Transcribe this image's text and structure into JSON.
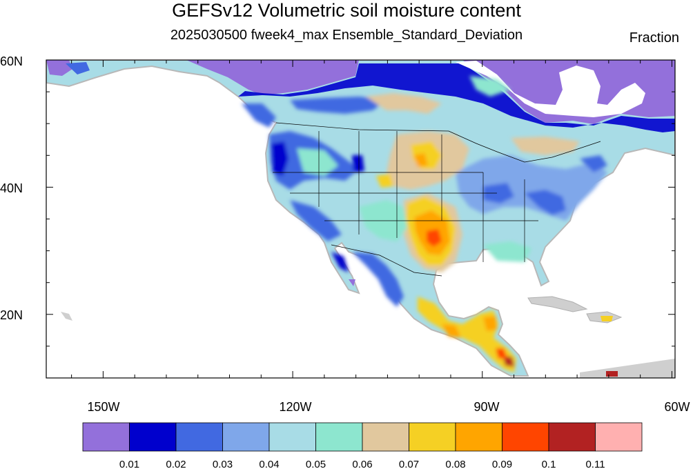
{
  "title": "GEFSv12 Volumetric soil moisture content",
  "subtitle": "2025030500 fweek4_max Ensemble_Standard_Deviation",
  "units": "Fraction",
  "map": {
    "lat_ticks": [
      "60N",
      "40N",
      "20N"
    ],
    "lon_ticks": [
      "150W",
      "120W",
      "90W",
      "60W"
    ],
    "extent": {
      "lon_min": -159,
      "lon_max": -59.5,
      "lat_min": 10,
      "lat_max": 60
    }
  },
  "colorbar": {
    "colors": [
      "#9370db",
      "#0000cd",
      "#4169e1",
      "#7fa7ea",
      "#a8dce6",
      "#8de6cf",
      "#e1c89e",
      "#f5d024",
      "#ffa500",
      "#ff4500",
      "#b22222",
      "#ffb0b0"
    ],
    "labels": [
      "0.01",
      "0.02",
      "0.03",
      "0.04",
      "0.05",
      "0.06",
      "0.07",
      "0.08",
      "0.09",
      "0.1",
      "0.11"
    ]
  }
}
